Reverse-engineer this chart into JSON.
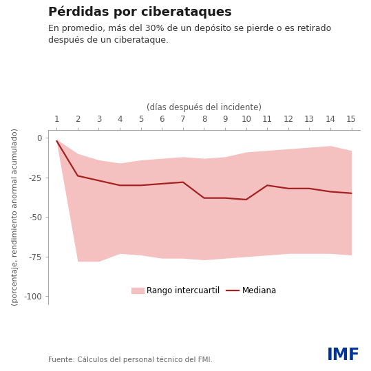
{
  "title": "Pérdidas por ciberataques",
  "subtitle": "En promedio, más del 30% de un depósito se pierde o es retirado\ndespués de un ciberataque.",
  "xlabel": "(días después del incidente)",
  "ylabel": "(porcentaje, rendimiento anormal acumulado)",
  "source": "Fuente: Cálculos del personal técnico del FMI.",
  "imf_text": "IMF",
  "x": [
    1,
    2,
    3,
    4,
    5,
    6,
    7,
    8,
    9,
    10,
    11,
    12,
    13,
    14,
    15
  ],
  "median": [
    -2,
    -24,
    -27,
    -30,
    -30,
    -29,
    -28,
    -38,
    -38,
    -39,
    -30,
    -32,
    -32,
    -34,
    -35
  ],
  "upper": [
    -1,
    -10,
    -14,
    -16,
    -14,
    -13,
    -12,
    -13,
    -12,
    -9,
    -8,
    -7,
    -6,
    -5,
    -8
  ],
  "lower": [
    -3,
    -78,
    -78,
    -73,
    -74,
    -76,
    -76,
    -77,
    -76,
    -75,
    -74,
    -73,
    -73,
    -73,
    -74
  ],
  "ylim": [
    -105,
    5
  ],
  "yticks": [
    0,
    -25,
    -50,
    -75,
    -100
  ],
  "background_color": "#ffffff",
  "fill_color": "#f5c0c0",
  "fill_alpha": 1.0,
  "line_color": "#a52020",
  "line_width": 1.6,
  "title_fontsize": 13,
  "subtitle_fontsize": 9,
  "tick_fontsize": 8.5,
  "xlabel_fontsize": 8.5,
  "ylabel_fontsize": 8,
  "source_fontsize": 7.5,
  "legend_fontsize": 8.5
}
